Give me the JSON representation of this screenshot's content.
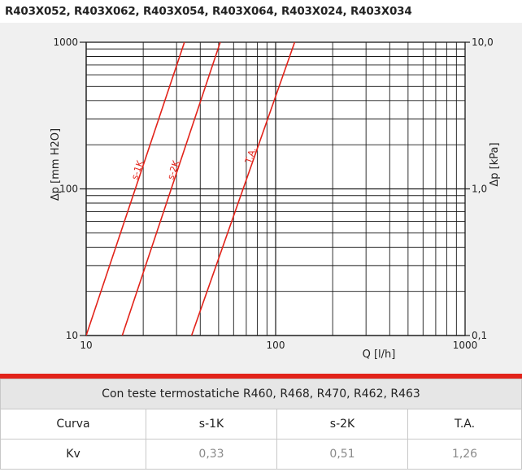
{
  "title": "R403X052, R403X062, R403X054, R403X064, R403X024, R403X034",
  "chart_data": {
    "type": "line",
    "x_scale": "log",
    "y_scale": "log",
    "xlim": [
      10,
      1000
    ],
    "ylim": [
      10,
      1000
    ],
    "xlabel": "Q [l/h]",
    "ylabel": "Δp [mm H2O]",
    "y2label": "Δp [kPa]",
    "x_ticks": [
      "10",
      "100",
      "1000"
    ],
    "y_ticks": [
      "10",
      "100",
      "1000"
    ],
    "y2_ticks": [
      "0,1",
      "1,0",
      "10,0"
    ],
    "grid": true,
    "series": [
      {
        "name": "s-1K",
        "x": [
          10,
          33
        ],
        "y": [
          10,
          1000
        ]
      },
      {
        "name": "s-2K",
        "x": [
          15.5,
          51
        ],
        "y": [
          10,
          1000
        ]
      },
      {
        "name": "T.A.",
        "x": [
          36,
          126
        ],
        "y": [
          10,
          1000
        ]
      }
    ],
    "colors": {
      "line": "#e2231a",
      "grid": "#1a1a1a",
      "panel": "#f0f0f0"
    }
  },
  "table": {
    "caption": "Con teste termostatiche R460, R468, R470, R462, R463",
    "header": [
      "Curva",
      "s-1K",
      "s-2K",
      "T.A."
    ],
    "row_label": "Kv",
    "values": [
      "0,33",
      "0,51",
      "1,26"
    ]
  }
}
